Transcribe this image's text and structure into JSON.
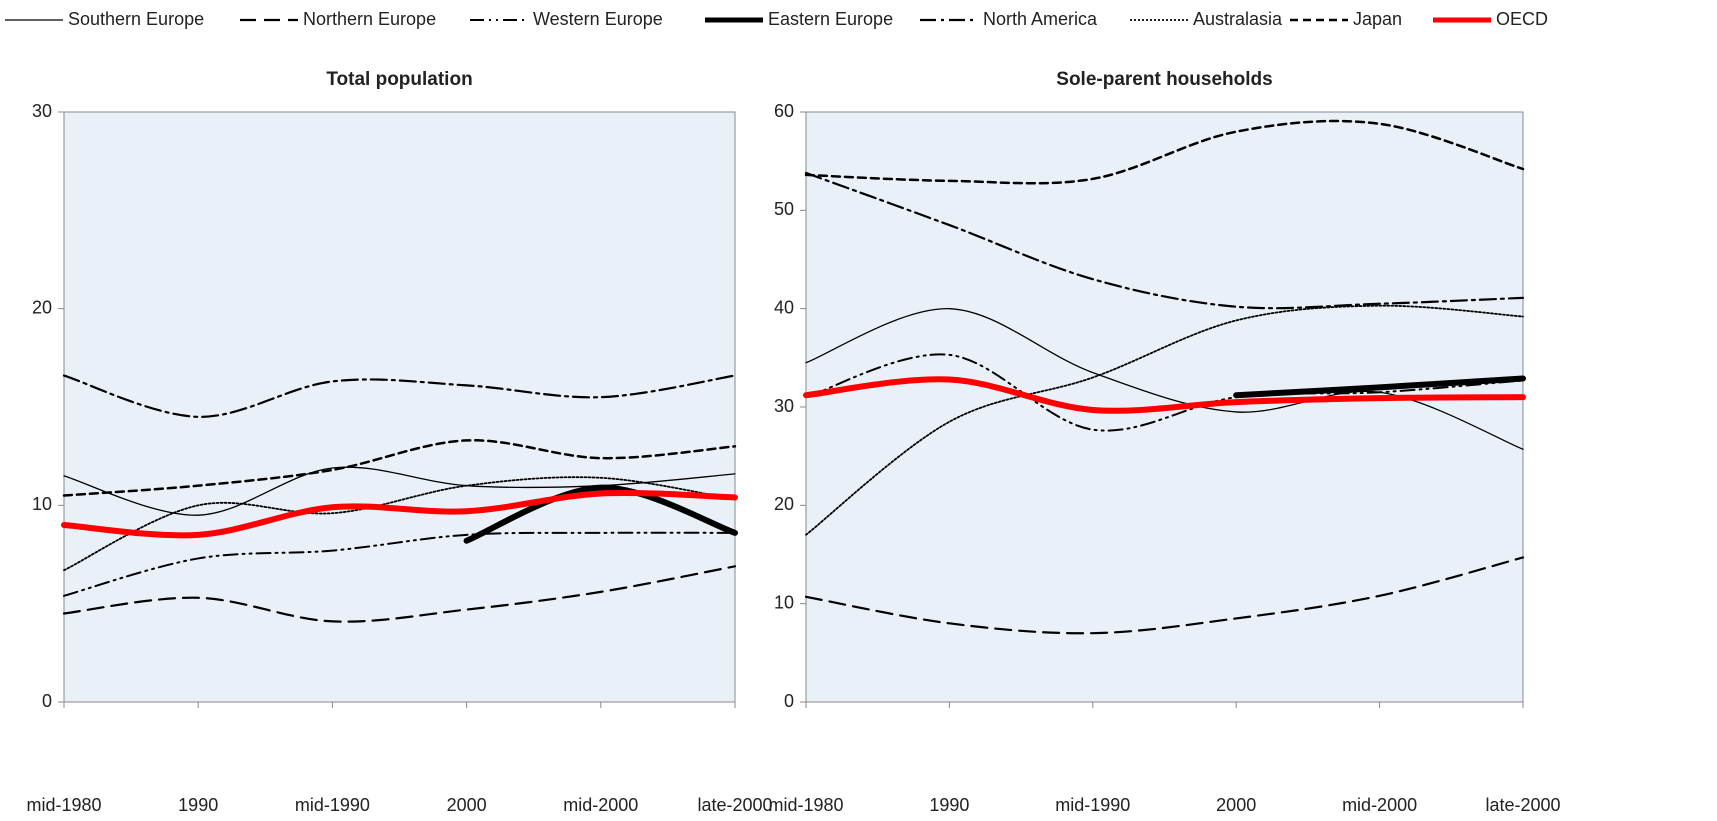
{
  "chart_data": [
    {
      "type": "line",
      "title": "Total population",
      "categories": [
        "mid-1980",
        "1990",
        "mid-1990",
        "2000",
        "mid-2000",
        "late-2000"
      ],
      "ylim": [
        0,
        30
      ],
      "yticks": [
        0,
        10,
        20,
        30
      ],
      "grid": false,
      "series": [
        {
          "name": "Southern Europe",
          "color": "#000000",
          "line_style": "solid",
          "values": [
            11.5,
            9.5,
            11.9,
            11.0,
            11.0,
            11.6
          ]
        },
        {
          "name": "Northern Europe",
          "color": "#000000",
          "line_style": "long-dash",
          "values": [
            4.5,
            5.3,
            4.1,
            4.7,
            5.6,
            6.9
          ]
        },
        {
          "name": "Western Europe",
          "color": "#000000",
          "line_style": "dash-dot-dot",
          "values": [
            5.4,
            7.3,
            7.7,
            8.5,
            8.6,
            8.6
          ]
        },
        {
          "name": "Eastern Europe",
          "color": "#000000",
          "line_style": "thick",
          "values": [
            null,
            null,
            null,
            8.2,
            10.9,
            8.6
          ]
        },
        {
          "name": "North America",
          "color": "#000000",
          "line_style": "dash-dot",
          "values": [
            16.6,
            14.5,
            16.3,
            16.1,
            15.5,
            16.6
          ]
        },
        {
          "name": "Australasia",
          "color": "#000000",
          "line_style": "dotted",
          "values": [
            6.7,
            10.0,
            9.6,
            11.0,
            11.4,
            10.3
          ]
        },
        {
          "name": "Japan",
          "color": "#000000",
          "line_style": "dash",
          "values": [
            10.5,
            11.0,
            11.8,
            13.3,
            12.4,
            13.0
          ]
        },
        {
          "name": "OECD",
          "color": "#ff0000",
          "line_style": "thick",
          "values": [
            9.0,
            8.5,
            9.9,
            9.7,
            10.6,
            10.4
          ]
        }
      ]
    },
    {
      "type": "line",
      "title": "Sole-parent households",
      "categories": [
        "mid-1980",
        "1990",
        "mid-1990",
        "2000",
        "mid-2000",
        "late-2000"
      ],
      "ylim": [
        0,
        60
      ],
      "yticks": [
        0,
        10,
        20,
        30,
        40,
        50,
        60
      ],
      "grid": false,
      "series": [
        {
          "name": "Southern Europe",
          "color": "#000000",
          "line_style": "solid",
          "values": [
            34.5,
            40.0,
            33.5,
            29.5,
            31.5,
            25.7
          ]
        },
        {
          "name": "Northern Europe",
          "color": "#000000",
          "line_style": "long-dash",
          "values": [
            10.7,
            8.0,
            7.0,
            8.5,
            10.8,
            14.7
          ]
        },
        {
          "name": "Western Europe",
          "color": "#000000",
          "line_style": "dash-dot-dot",
          "values": [
            31.0,
            35.3,
            27.7,
            31.0,
            31.5,
            32.7
          ]
        },
        {
          "name": "Eastern Europe",
          "color": "#000000",
          "line_style": "thick",
          "values": [
            null,
            null,
            null,
            31.2,
            32.0,
            32.9
          ]
        },
        {
          "name": "North America",
          "color": "#000000",
          "line_style": "dash-dot",
          "values": [
            53.8,
            48.5,
            43.0,
            40.2,
            40.5,
            41.1
          ]
        },
        {
          "name": "Australasia",
          "color": "#000000",
          "line_style": "dotted",
          "values": [
            17.0,
            28.5,
            33.0,
            38.8,
            40.3,
            39.2
          ]
        },
        {
          "name": "Japan",
          "color": "#000000",
          "line_style": "dash",
          "values": [
            53.6,
            53.0,
            53.2,
            58.0,
            58.8,
            54.2
          ]
        },
        {
          "name": "OECD",
          "color": "#ff0000",
          "line_style": "thick",
          "values": [
            31.2,
            32.8,
            29.7,
            30.5,
            30.9,
            31.0
          ]
        }
      ]
    }
  ]
}
